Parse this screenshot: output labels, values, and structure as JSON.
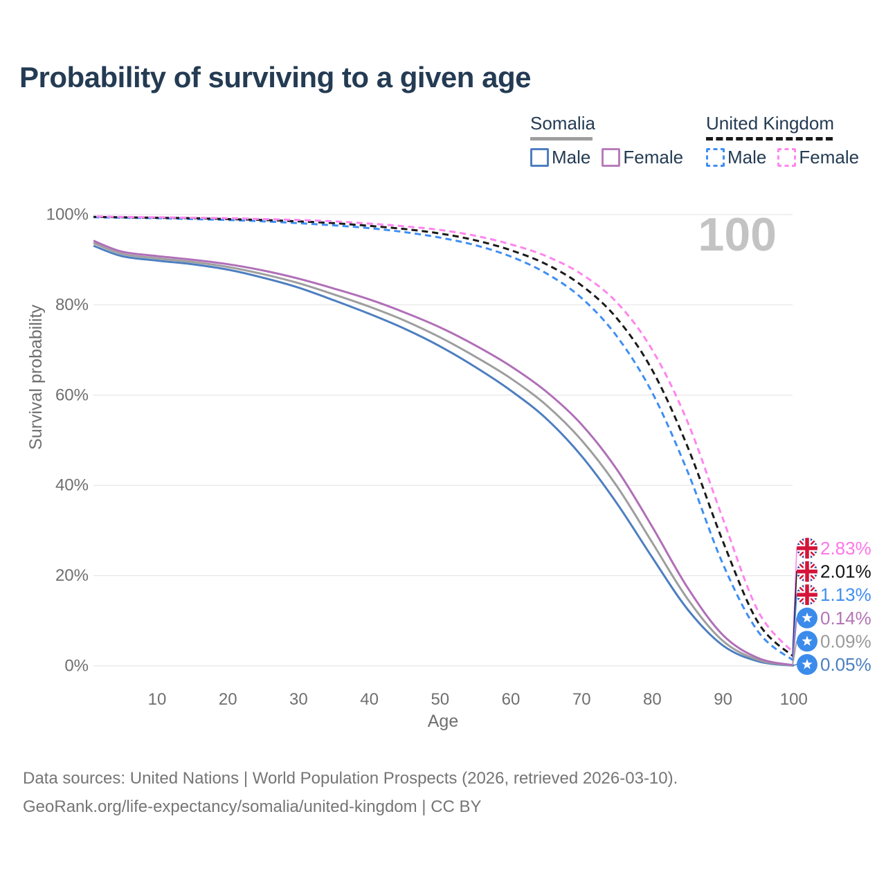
{
  "title": "Probability of surviving to a given age",
  "watermark": "100",
  "legend": {
    "groups": [
      {
        "label": "Somalia",
        "line_style": "solid",
        "underline_color": "#9e9e9e",
        "items": [
          {
            "label": "Male",
            "color": "#4d7ec0",
            "dashed": false
          },
          {
            "label": "Female",
            "color": "#b87cba",
            "dashed": false
          }
        ]
      },
      {
        "label": "United Kingdom",
        "line_style": "dashed",
        "underline_color": "#1a1a1a",
        "items": [
          {
            "label": "Male",
            "color": "#3f8ef3",
            "dashed": true
          },
          {
            "label": "Female",
            "color": "#fd87ee",
            "dashed": true
          }
        ]
      }
    ]
  },
  "chart_data": {
    "type": "line",
    "title": "Probability of surviving to a given age",
    "xlabel": "Age",
    "ylabel": "Survival probability",
    "xlim": [
      0,
      100
    ],
    "ylim": [
      0,
      100
    ],
    "grid": "horizontal",
    "x_ticks": [
      10,
      20,
      30,
      40,
      50,
      60,
      70,
      80,
      90,
      100
    ],
    "y_ticks": [
      {
        "value": 0,
        "label": "0%"
      },
      {
        "value": 20,
        "label": "20%"
      },
      {
        "value": 40,
        "label": "40%"
      },
      {
        "value": 60,
        "label": "60%"
      },
      {
        "value": 80,
        "label": "80%"
      },
      {
        "value": 100,
        "label": "100%"
      }
    ],
    "x": [
      1,
      5,
      10,
      15,
      20,
      25,
      30,
      35,
      40,
      45,
      50,
      55,
      60,
      65,
      70,
      75,
      80,
      85,
      90,
      95,
      100
    ],
    "series": [
      {
        "name": "Somalia Male",
        "country": "Somalia",
        "sex": "Male",
        "color": "#4d7ec0",
        "dashed": false,
        "flag": "somalia",
        "end_label": "0.05%",
        "end_label_color": "#4a7fc1",
        "values": [
          93.1,
          90.8,
          89.8,
          89.0,
          87.8,
          86.0,
          83.8,
          81.0,
          78.0,
          74.7,
          70.8,
          66.2,
          61.0,
          54.8,
          46.5,
          36.0,
          24.0,
          12.5,
          4.5,
          1.0,
          0.05
        ]
      },
      {
        "name": "Somalia Both sexes",
        "country": "Somalia",
        "sex": "Both",
        "color": "#9e9e9e",
        "dashed": false,
        "flag": "somalia",
        "end_label": "0.09%",
        "end_label_color": "#9a9a9a",
        "values": [
          93.7,
          91.3,
          90.3,
          89.5,
          88.4,
          86.8,
          84.8,
          82.3,
          79.6,
          76.5,
          72.8,
          68.5,
          63.7,
          57.8,
          50.0,
          39.8,
          27.3,
          14.8,
          5.5,
          1.3,
          0.09
        ]
      },
      {
        "name": "Somalia Female",
        "country": "Somalia",
        "sex": "Female",
        "color": "#b06fb8",
        "dashed": false,
        "flag": "somalia",
        "end_label": "0.14%",
        "end_label_color": "#b573b5",
        "values": [
          94.2,
          91.8,
          90.8,
          90.0,
          89.0,
          87.6,
          85.8,
          83.6,
          81.2,
          78.3,
          75.0,
          71.0,
          66.4,
          60.8,
          53.5,
          43.5,
          30.8,
          17.3,
          6.8,
          1.7,
          0.14
        ]
      },
      {
        "name": "United Kingdom Male",
        "country": "United Kingdom",
        "sex": "Male",
        "color": "#3f8ef3",
        "dashed": true,
        "flag": "uk",
        "end_label": "1.13%",
        "end_label_color": "#418ef2",
        "values": [
          99.4,
          99.3,
          99.2,
          99.0,
          98.8,
          98.5,
          98.1,
          97.6,
          97.0,
          96.1,
          94.9,
          93.2,
          90.7,
          87.0,
          81.5,
          73.0,
          60.5,
          43.0,
          22.5,
          7.5,
          1.13
        ]
      },
      {
        "name": "United Kingdom Both sexes",
        "country": "United Kingdom",
        "sex": "Both",
        "color": "#1a1a1a",
        "dashed": true,
        "flag": "uk",
        "end_label": "2.01%",
        "end_label_color": "#111111",
        "values": [
          99.5,
          99.4,
          99.3,
          99.2,
          99.0,
          98.8,
          98.5,
          98.1,
          97.5,
          96.8,
          95.8,
          94.3,
          92.1,
          89.0,
          84.3,
          77.0,
          65.5,
          48.5,
          27.5,
          9.5,
          2.01
        ]
      },
      {
        "name": "United Kingdom Female",
        "country": "United Kingdom",
        "sex": "Female",
        "color": "#fd85ee",
        "dashed": true,
        "flag": "uk",
        "end_label": "2.83%",
        "end_label_color": "#ff75e8",
        "values": [
          99.6,
          99.5,
          99.4,
          99.3,
          99.2,
          99.0,
          98.8,
          98.5,
          98.0,
          97.4,
          96.6,
          95.3,
          93.4,
          90.8,
          86.8,
          80.5,
          70.0,
          54.0,
          32.5,
          12.0,
          2.83
        ]
      }
    ]
  },
  "footer": {
    "line1": "Data sources: United Nations | World Population Prospects (2026, retrieved 2026-03-10).",
    "line2": "GeoRank.org/life-expectancy/somalia/united-kingdom | CC BY"
  },
  "colors": {
    "title_text": "#243b53",
    "axis_text": "#6f6f6f",
    "grid_line": "#e8e8e8",
    "watermark": "#c3c3c3",
    "footer_text": "#757575",
    "somalia_flag_blue": "#3b8beb",
    "uk_flag_navy": "#253c8c",
    "uk_flag_red": "#d5153a"
  }
}
